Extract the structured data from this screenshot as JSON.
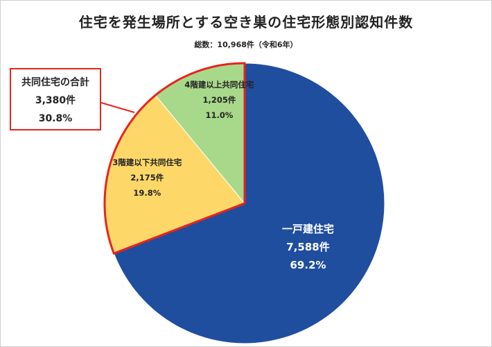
{
  "title": "住宅を発生場所とする空き巣の住宅形態別認知件数",
  "subtitle": "総数：10,968件（令和6年）",
  "callout": {
    "name": "共同住宅の合計",
    "count": "3,380件",
    "percent": "30.8%"
  },
  "chart_data": {
    "type": "pie",
    "title": "住宅を発生場所とする空き巣の住宅形態別認知件数",
    "subtitle": "総数：10,968件（令和6年）",
    "slices": [
      {
        "name": "一戸建住宅",
        "value": 7588,
        "count_label": "7,588件",
        "percent_label": "69.2%",
        "color": "#1f4e9f",
        "text_color": "#ffffff"
      },
      {
        "name": "3階建以下共同住宅",
        "value": 2175,
        "count_label": "2,175件",
        "percent_label": "19.8%",
        "color": "#fdd868",
        "text_color": "#222222"
      },
      {
        "name": "4階建以上共同住宅",
        "value": 1205,
        "count_label": "1,205件",
        "percent_label": "11.0%",
        "color": "#a8d98a",
        "text_color": "#222222"
      }
    ],
    "highlight_color": "#e8231c"
  }
}
